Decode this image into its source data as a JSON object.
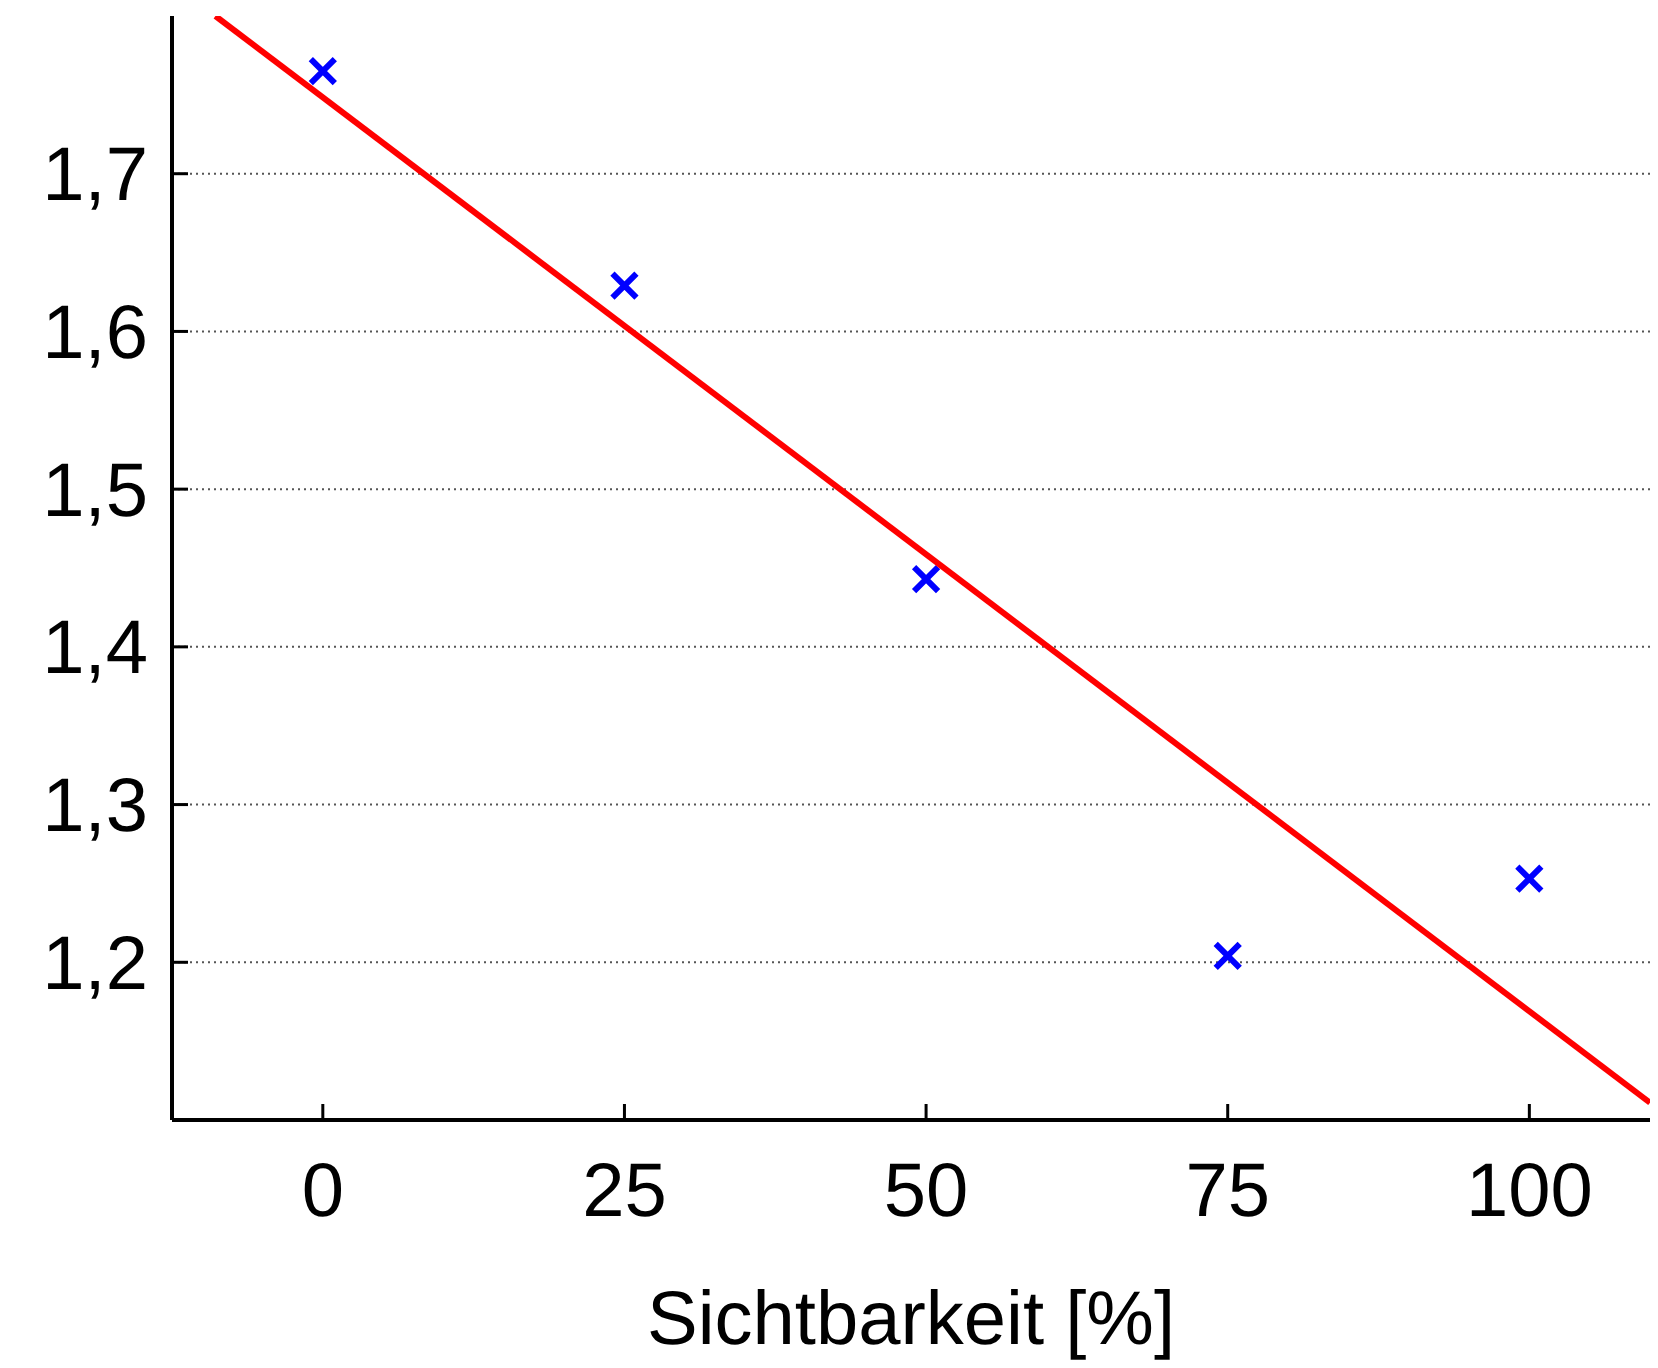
{
  "chart_data": {
    "type": "scatter",
    "xlabel": "Sichtbarkeit [%]",
    "xlim": [
      -12.5,
      110
    ],
    "xticks": [
      0,
      25,
      50,
      75,
      100
    ],
    "ylim": [
      1.1,
      1.8
    ],
    "yticks": [
      {
        "value": 1.2,
        "label": "1,2"
      },
      {
        "value": 1.3,
        "label": "1,3"
      },
      {
        "value": 1.4,
        "label": "1,4"
      },
      {
        "value": 1.5,
        "label": "1,5"
      },
      {
        "value": 1.6,
        "label": "1,6"
      },
      {
        "value": 1.7,
        "label": "1,7"
      }
    ],
    "grid": "y",
    "series": [
      {
        "color": "#0000ff",
        "marker": "cross",
        "x": [
          0,
          25,
          50,
          75,
          100
        ],
        "values": [
          1.765,
          1.629,
          1.443,
          1.204,
          1.253
        ]
      },
      {
        "type": "line",
        "color": "#ff0000",
        "marker": "none",
        "line_style": "solid",
        "x": [
          -8.9,
          110
        ],
        "values": [
          1.8,
          1.111
        ]
      }
    ]
  }
}
